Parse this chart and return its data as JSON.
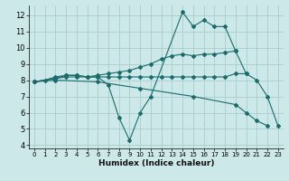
{
  "xlabel": "Humidex (Indice chaleur)",
  "bg_color": "#cce8e8",
  "grid_color": "#aacccc",
  "line_color": "#1a6b6b",
  "xlim": [
    -0.5,
    23.5
  ],
  "ylim": [
    3.8,
    12.6
  ],
  "xticks": [
    0,
    1,
    2,
    3,
    4,
    5,
    6,
    7,
    8,
    9,
    10,
    11,
    12,
    13,
    14,
    15,
    16,
    17,
    18,
    19,
    20,
    21,
    22,
    23
  ],
  "yticks": [
    4,
    5,
    6,
    7,
    8,
    9,
    10,
    11,
    12
  ],
  "series": [
    {
      "x": [
        0,
        1,
        2,
        3,
        4,
        5,
        6,
        7,
        8,
        9,
        10,
        11,
        14,
        15,
        16,
        17,
        18,
        19,
        20,
        21,
        22,
        23
      ],
      "y": [
        7.9,
        8.0,
        8.2,
        8.3,
        8.3,
        8.2,
        8.2,
        7.7,
        5.7,
        4.3,
        6.0,
        7.0,
        12.2,
        11.3,
        11.7,
        11.3,
        11.3,
        9.8,
        8.4,
        8.0,
        7.0,
        5.2
      ]
    },
    {
      "x": [
        0,
        2,
        3,
        4,
        5,
        6,
        7,
        8,
        9,
        10,
        11,
        12,
        13,
        14,
        15,
        16,
        17,
        18,
        19
      ],
      "y": [
        7.9,
        8.1,
        8.2,
        8.2,
        8.2,
        8.3,
        8.4,
        8.5,
        8.6,
        8.8,
        9.0,
        9.3,
        9.5,
        9.6,
        9.5,
        9.6,
        9.6,
        9.7,
        9.8
      ]
    },
    {
      "x": [
        0,
        2,
        3,
        4,
        5,
        6,
        7,
        8,
        9,
        10,
        11,
        12,
        13,
        14,
        15,
        16,
        17,
        18,
        19,
        20
      ],
      "y": [
        7.9,
        8.1,
        8.3,
        8.3,
        8.2,
        8.2,
        8.2,
        8.2,
        8.2,
        8.2,
        8.2,
        8.2,
        8.2,
        8.2,
        8.2,
        8.2,
        8.2,
        8.2,
        8.4,
        8.4
      ]
    },
    {
      "x": [
        0,
        2,
        6,
        10,
        15,
        19,
        20,
        21,
        22
      ],
      "y": [
        7.9,
        8.0,
        7.9,
        7.5,
        7.0,
        6.5,
        6.0,
        5.5,
        5.2
      ]
    }
  ]
}
